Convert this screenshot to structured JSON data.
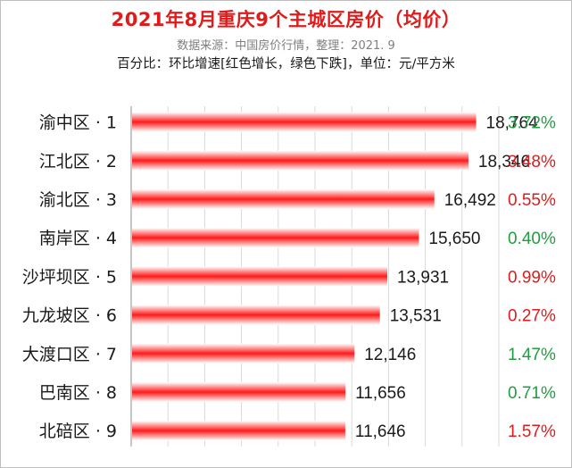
{
  "header": {
    "title": "2021年8月重庆9个主城区房价（均价）",
    "source": "数据来源：中国房价行情，整理：2021. 9",
    "note": "百分比：环比增速[红色增长，绿色下跌]，单位：元/平方米"
  },
  "colors": {
    "bar": "#ff1a1a",
    "up": "#e01b1b",
    "down": "#1f9e3f",
    "grid": "#d9d9d9"
  },
  "chart_data": {
    "type": "bar",
    "orientation": "horizontal",
    "categories": [
      "渝中区 · 1",
      "江北区 · 2",
      "渝北区 · 3",
      "南岸区 · 4",
      "沙坪坝区 · 5",
      "九龙坡区 · 6",
      "大渡口区 · 7",
      "巴南区 · 8",
      "北碚区 · 9"
    ],
    "values": [
      18764,
      18346,
      16492,
      15650,
      13931,
      13531,
      12146,
      11656,
      11646
    ],
    "value_labels": [
      "18,764",
      "18,346",
      "16,492",
      "15,650",
      "13,931",
      "13,531",
      "12,146",
      "11,656",
      "11,646"
    ],
    "changes": [
      "3.72%",
      "3.48%",
      "0.55%",
      "0.40%",
      "0.99%",
      "0.27%",
      "1.47%",
      "0.71%",
      "1.57%"
    ],
    "change_direction": [
      "down",
      "up",
      "up",
      "down",
      "up",
      "up",
      "down",
      "down",
      "up"
    ],
    "xlim": [
      0,
      20000
    ],
    "grid": true,
    "legend": "none"
  }
}
